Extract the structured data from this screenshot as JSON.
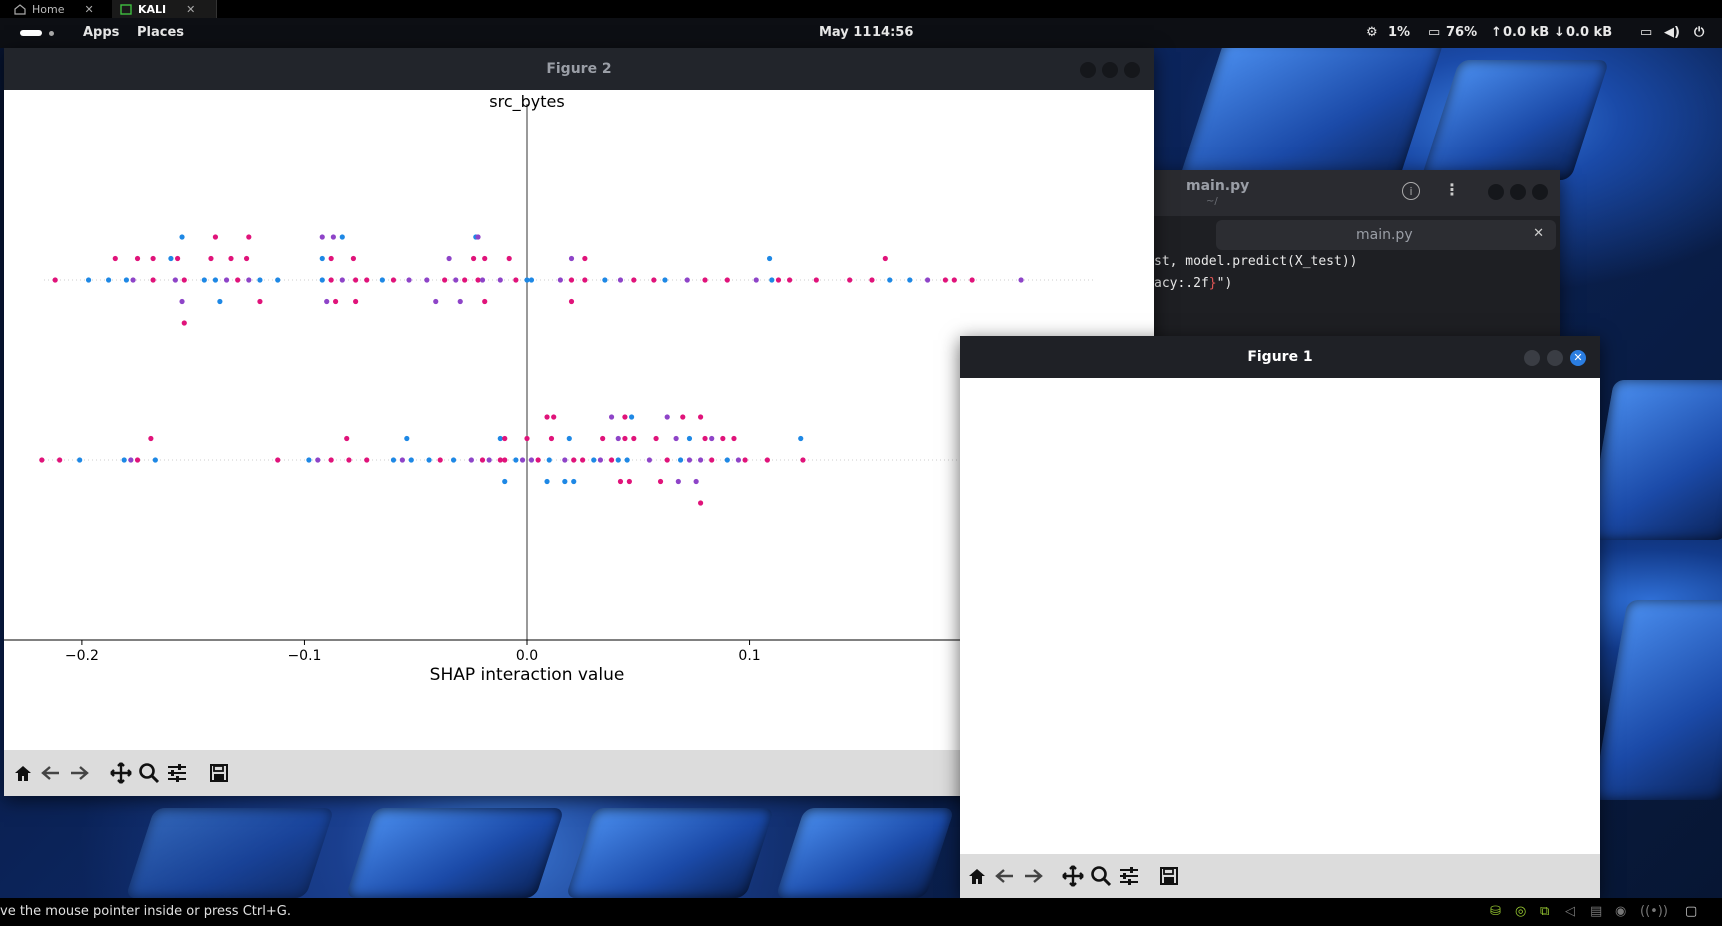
{
  "vm_tabs": [
    {
      "label": "Home",
      "icon": "home-icon"
    },
    {
      "label": "KALI",
      "icon": "vm-icon"
    }
  ],
  "panel": {
    "apps": "Apps",
    "places": "Places",
    "date": "May 11",
    "time": "14:56",
    "cpu": "1%",
    "memory": "76%",
    "net_up": "0.0 kB",
    "net_down": "0.0 kB"
  },
  "editor": {
    "title": "main.py",
    "subtitle": "~/",
    "tab": "main.py",
    "line1": "st, model.predict(X_test))",
    "line2_a": "acy:.2f",
    "line2_b": "}",
    "line2_c": "\")"
  },
  "figure2": {
    "title": "Figure 2"
  },
  "figure1": {
    "title": "Figure 1"
  },
  "toolbar_icons": [
    "home-icon",
    "back-arrow-icon",
    "forward-arrow-icon",
    "pan-icon",
    "zoom-icon",
    "configure-subplots-icon",
    "save-icon"
  ],
  "status_bar": {
    "message": "ve the mouse pointer inside or press Ctrl+G."
  },
  "colors": {
    "low": "#1e88e5",
    "mid": "#8e44c8",
    "high": "#e0137a"
  },
  "chart_data": {
    "type": "scatter",
    "title": "src_bytes",
    "xlabel": "SHAP interaction value",
    "xlim": [
      -0.235,
      0.235
    ],
    "xticks": [
      -0.2,
      -0.1,
      0.0,
      0.1
    ],
    "xtick_labels": [
      "−0.2",
      "−0.1",
      "0.0",
      "0.1"
    ],
    "rows": 2,
    "series": [
      {
        "row": 0,
        "points": [
          [
            -0.212,
            0,
            "m"
          ],
          [
            -0.197,
            0,
            "b"
          ],
          [
            -0.188,
            0,
            "b"
          ],
          [
            -0.18,
            0,
            "b"
          ],
          [
            -0.177,
            0,
            "p"
          ],
          [
            -0.168,
            0,
            "m"
          ],
          [
            -0.158,
            0,
            "p"
          ],
          [
            -0.154,
            0,
            "m"
          ],
          [
            -0.145,
            0,
            "b"
          ],
          [
            -0.14,
            0,
            "b"
          ],
          [
            -0.135,
            0,
            "p"
          ],
          [
            -0.13,
            0,
            "m"
          ],
          [
            -0.125,
            0,
            "p"
          ],
          [
            -0.12,
            0,
            "b"
          ],
          [
            -0.112,
            0,
            "b"
          ],
          [
            -0.092,
            0,
            "b"
          ],
          [
            -0.088,
            0,
            "m"
          ],
          [
            -0.083,
            0,
            "p"
          ],
          [
            -0.077,
            0,
            "m"
          ],
          [
            -0.072,
            0,
            "m"
          ],
          [
            -0.065,
            0,
            "b"
          ],
          [
            -0.06,
            0,
            "m"
          ],
          [
            -0.053,
            0,
            "p"
          ],
          [
            -0.045,
            0,
            "p"
          ],
          [
            -0.037,
            0,
            "m"
          ],
          [
            -0.032,
            0,
            "p"
          ],
          [
            -0.028,
            0,
            "m"
          ],
          [
            -0.022,
            0,
            "m"
          ],
          [
            -0.02,
            0,
            "p"
          ],
          [
            -0.012,
            0,
            "p"
          ],
          [
            -0.005,
            0,
            "m"
          ],
          [
            0.0,
            0,
            "b"
          ],
          [
            0.002,
            0,
            "b"
          ],
          [
            0.015,
            0,
            "p"
          ],
          [
            0.02,
            0,
            "m"
          ],
          [
            0.026,
            0,
            "m"
          ],
          [
            0.035,
            0,
            "b"
          ],
          [
            0.042,
            0,
            "p"
          ],
          [
            0.048,
            0,
            "m"
          ],
          [
            0.057,
            0,
            "m"
          ],
          [
            0.062,
            0,
            "b"
          ],
          [
            0.072,
            0,
            "p"
          ],
          [
            0.08,
            0,
            "m"
          ],
          [
            0.09,
            0,
            "m"
          ],
          [
            0.103,
            0,
            "p"
          ],
          [
            0.11,
            0,
            "b"
          ],
          [
            0.113,
            0,
            "m"
          ],
          [
            0.118,
            0,
            "m"
          ],
          [
            0.13,
            0,
            "m"
          ],
          [
            0.145,
            0,
            "m"
          ],
          [
            0.155,
            0,
            "m"
          ],
          [
            0.163,
            0,
            "b"
          ],
          [
            0.172,
            0,
            "b"
          ],
          [
            0.18,
            0,
            "p"
          ],
          [
            0.188,
            0,
            "m"
          ],
          [
            0.192,
            0,
            "m"
          ],
          [
            0.2,
            0,
            "m"
          ],
          [
            0.222,
            0,
            "p"
          ],
          [
            -0.185,
            1,
            "m"
          ],
          [
            -0.175,
            1,
            "m"
          ],
          [
            -0.168,
            1,
            "m"
          ],
          [
            -0.16,
            1,
            "b"
          ],
          [
            -0.157,
            1,
            "m"
          ],
          [
            -0.142,
            1,
            "m"
          ],
          [
            -0.133,
            1,
            "m"
          ],
          [
            -0.126,
            1,
            "m"
          ],
          [
            -0.092,
            1,
            "b"
          ],
          [
            -0.088,
            1,
            "m"
          ],
          [
            -0.078,
            1,
            "m"
          ],
          [
            -0.035,
            1,
            "p"
          ],
          [
            -0.024,
            1,
            "m"
          ],
          [
            -0.019,
            1,
            "m"
          ],
          [
            -0.008,
            1,
            "m"
          ],
          [
            0.02,
            1,
            "p"
          ],
          [
            0.026,
            1,
            "m"
          ],
          [
            0.109,
            1,
            "b"
          ],
          [
            0.161,
            1,
            "m"
          ],
          [
            -0.155,
            2,
            "b"
          ],
          [
            -0.14,
            2,
            "m"
          ],
          [
            -0.125,
            2,
            "m"
          ],
          [
            -0.092,
            2,
            "p"
          ],
          [
            -0.087,
            2,
            "p"
          ],
          [
            -0.083,
            2,
            "b"
          ],
          [
            -0.023,
            2,
            "b"
          ],
          [
            -0.022,
            2,
            "p"
          ],
          [
            -0.155,
            -1,
            "p"
          ],
          [
            -0.138,
            -1,
            "b"
          ],
          [
            -0.12,
            -1,
            "m"
          ],
          [
            -0.09,
            -1,
            "p"
          ],
          [
            -0.086,
            -1,
            "m"
          ],
          [
            -0.077,
            -1,
            "m"
          ],
          [
            -0.041,
            -1,
            "p"
          ],
          [
            -0.03,
            -1,
            "p"
          ],
          [
            -0.019,
            -1,
            "m"
          ],
          [
            0.02,
            -1,
            "m"
          ],
          [
            -0.154,
            -2,
            "m"
          ]
        ]
      },
      {
        "row": 1,
        "points": [
          [
            -0.218,
            0,
            "m"
          ],
          [
            -0.21,
            0,
            "m"
          ],
          [
            -0.201,
            0,
            "b"
          ],
          [
            -0.181,
            0,
            "b"
          ],
          [
            -0.178,
            0,
            "p"
          ],
          [
            -0.175,
            0,
            "m"
          ],
          [
            -0.167,
            0,
            "b"
          ],
          [
            -0.112,
            0,
            "m"
          ],
          [
            -0.098,
            0,
            "b"
          ],
          [
            -0.094,
            0,
            "p"
          ],
          [
            -0.088,
            0,
            "m"
          ],
          [
            -0.08,
            0,
            "m"
          ],
          [
            -0.072,
            0,
            "m"
          ],
          [
            -0.06,
            0,
            "b"
          ],
          [
            -0.056,
            0,
            "p"
          ],
          [
            -0.052,
            0,
            "b"
          ],
          [
            -0.044,
            0,
            "b"
          ],
          [
            -0.039,
            0,
            "m"
          ],
          [
            -0.033,
            0,
            "b"
          ],
          [
            -0.025,
            0,
            "p"
          ],
          [
            -0.02,
            0,
            "m"
          ],
          [
            -0.017,
            0,
            "p"
          ],
          [
            -0.012,
            0,
            "m"
          ],
          [
            -0.01,
            0,
            "m"
          ],
          [
            -0.005,
            0,
            "b"
          ],
          [
            -0.002,
            0,
            "p"
          ],
          [
            0.002,
            0,
            "p"
          ],
          [
            0.005,
            0,
            "m"
          ],
          [
            0.01,
            0,
            "b"
          ],
          [
            0.017,
            0,
            "p"
          ],
          [
            0.021,
            0,
            "m"
          ],
          [
            0.025,
            0,
            "m"
          ],
          [
            0.03,
            0,
            "b"
          ],
          [
            0.033,
            0,
            "p"
          ],
          [
            0.038,
            0,
            "m"
          ],
          [
            0.041,
            0,
            "b"
          ],
          [
            0.045,
            0,
            "b"
          ],
          [
            0.055,
            0,
            "p"
          ],
          [
            0.063,
            0,
            "m"
          ],
          [
            0.069,
            0,
            "b"
          ],
          [
            0.073,
            0,
            "p"
          ],
          [
            0.078,
            0,
            "p"
          ],
          [
            0.083,
            0,
            "m"
          ],
          [
            0.09,
            0,
            "b"
          ],
          [
            0.095,
            0,
            "p"
          ],
          [
            0.098,
            0,
            "m"
          ],
          [
            0.108,
            0,
            "m"
          ],
          [
            0.124,
            0,
            "m"
          ],
          [
            -0.169,
            1,
            "m"
          ],
          [
            -0.081,
            1,
            "m"
          ],
          [
            -0.054,
            1,
            "b"
          ],
          [
            -0.012,
            1,
            "b"
          ],
          [
            -0.01,
            1,
            "m"
          ],
          [
            0.0,
            1,
            "m"
          ],
          [
            0.011,
            1,
            "m"
          ],
          [
            0.019,
            1,
            "b"
          ],
          [
            0.034,
            1,
            "m"
          ],
          [
            0.041,
            1,
            "p"
          ],
          [
            0.044,
            1,
            "m"
          ],
          [
            0.048,
            1,
            "m"
          ],
          [
            0.058,
            1,
            "m"
          ],
          [
            0.067,
            1,
            "p"
          ],
          [
            0.073,
            1,
            "b"
          ],
          [
            0.08,
            1,
            "m"
          ],
          [
            0.083,
            1,
            "p"
          ],
          [
            0.088,
            1,
            "m"
          ],
          [
            0.093,
            1,
            "m"
          ],
          [
            0.123,
            1,
            "b"
          ],
          [
            0.009,
            2,
            "m"
          ],
          [
            0.012,
            2,
            "m"
          ],
          [
            0.038,
            2,
            "p"
          ],
          [
            0.044,
            2,
            "m"
          ],
          [
            0.047,
            2,
            "b"
          ],
          [
            0.063,
            2,
            "p"
          ],
          [
            0.07,
            2,
            "m"
          ],
          [
            0.078,
            2,
            "m"
          ],
          [
            -0.01,
            -1,
            "b"
          ],
          [
            0.009,
            -1,
            "b"
          ],
          [
            0.017,
            -1,
            "b"
          ],
          [
            0.021,
            -1,
            "b"
          ],
          [
            0.042,
            -1,
            "m"
          ],
          [
            0.046,
            -1,
            "m"
          ],
          [
            0.06,
            -1,
            "m"
          ],
          [
            0.068,
            -1,
            "p"
          ],
          [
            0.076,
            -1,
            "p"
          ],
          [
            0.078,
            -2,
            "m"
          ]
        ]
      }
    ]
  }
}
